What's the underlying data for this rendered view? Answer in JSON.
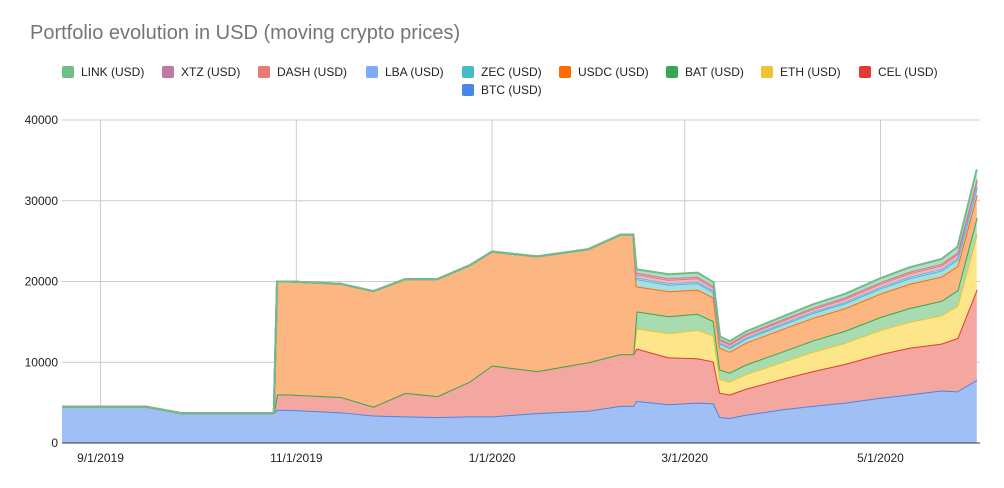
{
  "chart_data": {
    "type": "area",
    "stacked": true,
    "title": "Portfolio evolution in USD (moving crypto prices)",
    "xlabel": "",
    "ylabel": "",
    "ylim": [
      0,
      40000
    ],
    "yticks": [
      0,
      10000,
      20000,
      30000,
      40000
    ],
    "xlim": [
      "2019-08-20",
      "2020-06-01"
    ],
    "xticks": [
      {
        "date": "2019-09-01",
        "label": "9/1/2019"
      },
      {
        "date": "2019-11-01",
        "label": "11/1/2019"
      },
      {
        "date": "2020-01-01",
        "label": "1/1/2020"
      },
      {
        "date": "2020-03-01",
        "label": "3/1/2020"
      },
      {
        "date": "2020-05-01",
        "label": "5/1/2020"
      }
    ],
    "grid": true,
    "legend_position": "top",
    "x": [
      "2019-08-20",
      "2019-08-21",
      "2019-08-24",
      "2019-09-15",
      "2019-09-26",
      "2019-10-15",
      "2019-10-25",
      "2019-10-26",
      "2019-10-30",
      "2019-11-15",
      "2019-11-25",
      "2019-12-05",
      "2019-12-15",
      "2019-12-25",
      "2020-01-01",
      "2020-01-15",
      "2020-01-31",
      "2020-02-10",
      "2020-02-14",
      "2020-02-15",
      "2020-02-25",
      "2020-03-05",
      "2020-03-10",
      "2020-03-12",
      "2020-03-15",
      "2020-03-20",
      "2020-04-01",
      "2020-04-10",
      "2020-04-20",
      "2020-05-01",
      "2020-05-10",
      "2020-05-20",
      "2020-05-25",
      "2020-05-31"
    ],
    "series": [
      {
        "name": "BTC (USD)",
        "color": "#a0c0f5",
        "edge": "#4a86e8",
        "values": [
          4500,
          4500,
          4500,
          4500,
          3700,
          3700,
          3700,
          4100,
          4100,
          3800,
          3400,
          3300,
          3200,
          3300,
          3300,
          3700,
          4000,
          4600,
          4600,
          5200,
          4800,
          5000,
          4900,
          3200,
          3100,
          3500,
          4200,
          4600,
          5000,
          5600,
          6000,
          6500,
          6400,
          7800
        ]
      },
      {
        "name": "CEL (USD)",
        "color": "#f4a6a0",
        "edge": "#e53935",
        "values": [
          0,
          0,
          0,
          0,
          0,
          0,
          0,
          1900,
          1900,
          1900,
          1100,
          2900,
          2600,
          4300,
          6300,
          5200,
          6000,
          6400,
          6400,
          6500,
          5800,
          5500,
          5200,
          3000,
          2900,
          3200,
          3800,
          4300,
          4800,
          5400,
          5800,
          5800,
          6600,
          11200
        ]
      },
      {
        "name": "ETH (USD)",
        "color": "#fde68a",
        "edge": "#f1c232",
        "values": [
          0,
          0,
          0,
          0,
          0,
          0,
          0,
          0,
          0,
          0,
          0,
          0,
          0,
          0,
          0,
          0,
          0,
          0,
          0,
          2500,
          3000,
          3500,
          3200,
          1700,
          1600,
          1800,
          2100,
          2400,
          2600,
          3000,
          3200,
          3500,
          4000,
          6800
        ]
      },
      {
        "name": "BAT (USD)",
        "color": "#a8dcb0",
        "edge": "#34a853",
        "values": [
          0,
          0,
          0,
          0,
          0,
          0,
          0,
          0,
          0,
          0,
          0,
          0,
          0,
          0,
          0,
          0,
          0,
          0,
          0,
          2100,
          2100,
          2000,
          1800,
          1200,
          1100,
          1200,
          1300,
          1400,
          1500,
          1600,
          1700,
          1800,
          1900,
          2100
        ]
      },
      {
        "name": "USDC (USD)",
        "color": "#fbb682",
        "edge": "#ff6d01",
        "values": [
          0,
          0,
          0,
          0,
          0,
          0,
          0,
          14000,
          14000,
          14000,
          14300,
          14100,
          14500,
          14400,
          14100,
          14200,
          14000,
          14800,
          14800,
          3100,
          3100,
          3000,
          2900,
          2700,
          2600,
          2700,
          2800,
          2800,
          2800,
          2900,
          3000,
          3000,
          3000,
          2800
        ]
      },
      {
        "name": "ZEC (USD)",
        "color": "#a7dfe0",
        "edge": "#46bdc6",
        "values": [
          0,
          0,
          0,
          0,
          0,
          0,
          0,
          0,
          0,
          0,
          0,
          0,
          0,
          0,
          0,
          0,
          0,
          0,
          0,
          900,
          800,
          800,
          700,
          500,
          450,
          500,
          550,
          600,
          620,
          650,
          700,
          750,
          800,
          850
        ]
      },
      {
        "name": "LBA (USD)",
        "color": "#c9dbfa",
        "edge": "#7baaf7",
        "values": [
          0,
          0,
          0,
          0,
          0,
          0,
          0,
          0,
          0,
          0,
          0,
          0,
          0,
          0,
          0,
          0,
          0,
          0,
          0,
          200,
          200,
          200,
          180,
          150,
          140,
          150,
          160,
          170,
          180,
          190,
          200,
          210,
          220,
          230
        ]
      },
      {
        "name": "DASH (USD)",
        "color": "#f7b9b3",
        "edge": "#e67c73",
        "values": [
          0,
          0,
          0,
          0,
          0,
          0,
          0,
          0,
          0,
          0,
          0,
          0,
          0,
          0,
          0,
          0,
          0,
          0,
          0,
          400,
          400,
          400,
          380,
          300,
          290,
          300,
          320,
          330,
          350,
          380,
          400,
          420,
          450,
          600
        ]
      },
      {
        "name": "XTZ (USD)",
        "color": "#dfbfd0",
        "edge": "#c27ba0",
        "values": [
          0,
          0,
          0,
          0,
          0,
          0,
          0,
          0,
          0,
          0,
          0,
          0,
          0,
          0,
          0,
          0,
          0,
          0,
          0,
          200,
          200,
          200,
          190,
          150,
          140,
          150,
          160,
          170,
          180,
          190,
          200,
          210,
          220,
          300
        ]
      },
      {
        "name": "LINK (USD)",
        "color": "#b7dcc3",
        "edge": "#6dbf87",
        "values": [
          0,
          0,
          0,
          0,
          0,
          0,
          0,
          0,
          0,
          0,
          0,
          0,
          0,
          0,
          0,
          0,
          0,
          0,
          0,
          400,
          500,
          500,
          450,
          300,
          290,
          300,
          350,
          400,
          450,
          500,
          550,
          600,
          700,
          1200
        ]
      }
    ]
  },
  "legend": {
    "row1": [
      {
        "label": "LINK (USD)",
        "color": "#6dbf87"
      },
      {
        "label": "XTZ (USD)",
        "color": "#c27ba0"
      },
      {
        "label": "DASH (USD)",
        "color": "#e67c73"
      },
      {
        "label": "LBA (USD)",
        "color": "#7baaf7"
      },
      {
        "label": "ZEC (USD)",
        "color": "#46bdc6"
      },
      {
        "label": "USDC (USD)",
        "color": "#ff6d01"
      },
      {
        "label": "BAT (USD)",
        "color": "#34a853"
      },
      {
        "label": "ETH (USD)",
        "color": "#f1c232"
      },
      {
        "label": "CEL (USD)",
        "color": "#e53935"
      }
    ],
    "row2": [
      {
        "label": "BTC (USD)",
        "color": "#4a86e8"
      }
    ]
  }
}
